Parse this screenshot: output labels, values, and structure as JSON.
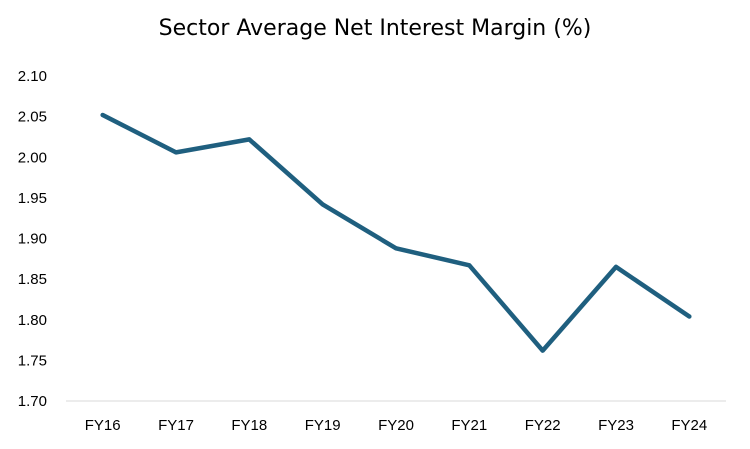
{
  "chart_data": {
    "type": "line",
    "title": "Sector Average Net Interest Margin (%)",
    "xlabel": "",
    "ylabel": "",
    "categories": [
      "FY16",
      "FY17",
      "FY18",
      "FY19",
      "FY20",
      "FY21",
      "FY22",
      "FY23",
      "FY24"
    ],
    "series": [
      {
        "values": [
          2.052,
          2.006,
          2.022,
          1.942,
          1.888,
          1.867,
          1.762,
          1.865,
          1.804
        ]
      }
    ],
    "ylim": [
      1.7,
      2.1
    ],
    "yticks": [
      "1.70",
      "1.75",
      "1.80",
      "1.85",
      "1.90",
      "1.95",
      "2.00",
      "2.05",
      "2.10"
    ],
    "grid": false,
    "legend": "none",
    "colors": {
      "line": "#1f5f7f",
      "axis": "#d9d9d9",
      "text": "#000000"
    }
  }
}
